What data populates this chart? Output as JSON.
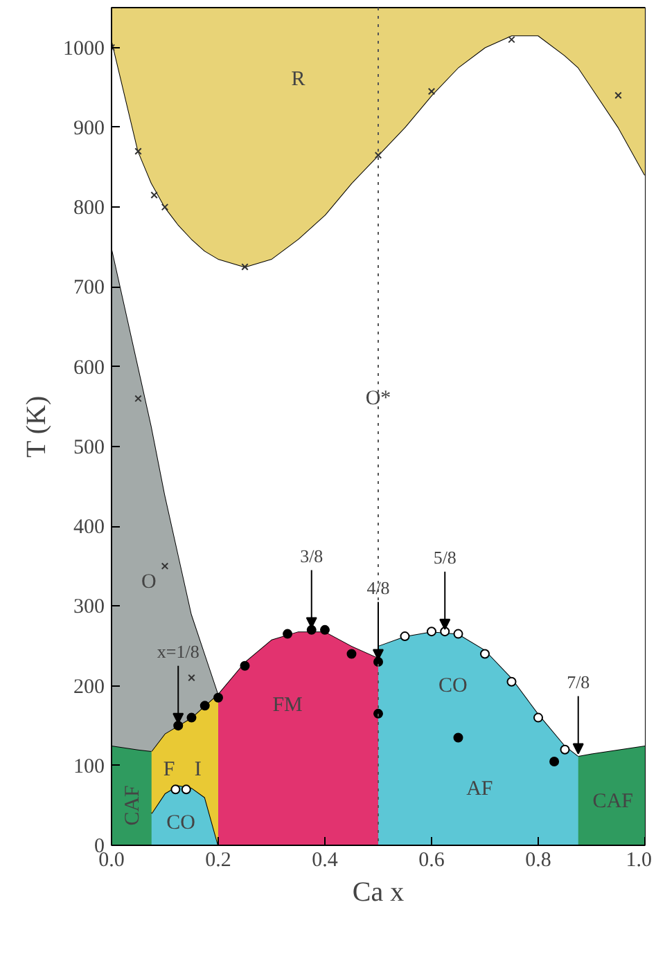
{
  "chart_data": {
    "type": "area",
    "stacked": true,
    "xlabel": "Ca x",
    "ylabel": "T (K)",
    "xlim": [
      0,
      1
    ],
    "ylim": [
      0,
      1050
    ],
    "xticks": [
      {
        "value": 0,
        "label": "0.0"
      },
      {
        "value": 0.2,
        "label": "0.2"
      },
      {
        "value": 0.4,
        "label": "0.4"
      },
      {
        "value": 0.6,
        "label": "0.6"
      },
      {
        "value": 0.8,
        "label": "0.8"
      },
      {
        "value": 1,
        "label": "1.0"
      }
    ],
    "yticks": [
      0,
      100,
      200,
      300,
      400,
      500,
      600,
      700,
      800,
      900,
      1000
    ],
    "x": [
      0,
      0.05,
      0.075,
      0.075,
      0.1,
      0.125,
      0.15,
      0.175,
      0.2,
      0.2,
      0.25,
      0.3,
      0.35,
      0.4,
      0.45,
      0.5,
      0.5,
      0.55,
      0.6,
      0.65,
      0.7,
      0.75,
      0.8,
      0.85,
      0.875,
      0.875,
      0.9,
      0.95,
      1.0
    ],
    "series": [
      {
        "color": "#2f9b5f",
        "values": [
          125,
          120,
          118,
          null,
          null,
          null,
          null,
          null,
          null,
          null,
          null,
          null,
          null,
          null,
          null,
          null,
          null,
          null,
          null,
          null,
          null,
          null,
          null,
          null,
          null,
          112,
          115,
          120,
          125
        ]
      },
      {
        "color": "#5cc7d6",
        "values": [
          null,
          null,
          null,
          40,
          65,
          75,
          72,
          60,
          0,
          null,
          null,
          null,
          null,
          null,
          null,
          null,
          250,
          262,
          268,
          265,
          245,
          210,
          165,
          125,
          112,
          null,
          null,
          null,
          null
        ]
      },
      {
        "color": "#e9c934",
        "values": [
          null,
          null,
          null,
          78,
          75,
          75,
          88,
          115,
          190,
          null,
          null,
          null,
          null,
          null,
          null,
          null,
          null,
          null,
          null,
          null,
          null,
          null,
          null,
          null,
          null,
          null,
          null,
          null,
          null
        ]
      },
      {
        "color": "#e2336f",
        "values": [
          null,
          null,
          null,
          null,
          null,
          null,
          null,
          null,
          null,
          190,
          230,
          258,
          268,
          268,
          250,
          235,
          null,
          null,
          null,
          null,
          null,
          null,
          null,
          null,
          null,
          null,
          null,
          null,
          null
        ]
      },
      {
        "color": "#a3aaa9",
        "values": [
          625,
          480,
          407,
          407,
          300,
          215,
          130,
          65,
          0,
          null,
          null,
          null,
          null,
          null,
          null,
          null,
          null,
          null,
          null,
          null,
          null,
          null,
          null,
          null,
          null,
          null,
          null,
          null,
          null
        ]
      },
      {
        "color": "#ffffff",
        "values": [
          260,
          270,
          305,
          305,
          360,
          413,
          470,
          505,
          545,
          545,
          495,
          477,
          492,
          522,
          580,
          630,
          615,
          638,
          672,
          710,
          755,
          805,
          850,
          865,
          863,
          863,
          835,
          780,
          715
        ]
      },
      {
        "color": "#e8d377",
        "values": [
          40,
          180,
          220,
          220,
          250,
          272,
          290,
          305,
          315,
          315,
          325,
          315,
          290,
          260,
          220,
          185,
          185,
          150,
          110,
          75,
          50,
          35,
          35,
          60,
          75,
          75,
          100,
          150,
          210
        ]
      },
      {
        "type": "scatter",
        "marker": "cross",
        "color": "#333333",
        "x": [
          0,
          0.05,
          0.08,
          0.1,
          0.25,
          0.5,
          0.6,
          0.75,
          0.95,
          0.05,
          0.1,
          0.15
        ],
        "values": [
          1000,
          870,
          815,
          800,
          725,
          865,
          945,
          1010,
          940,
          560,
          350,
          210
        ]
      },
      {
        "type": "scatter",
        "marker": "circle",
        "color": "#000000",
        "x": [
          0.125,
          0.15,
          0.175,
          0.2,
          0.25,
          0.33,
          0.375,
          0.4,
          0.45,
          0.5,
          0.5,
          0.65,
          0.83
        ],
        "values": [
          150,
          160,
          175,
          185,
          225,
          265,
          270,
          270,
          240,
          230,
          165,
          135,
          105
        ]
      },
      {
        "type": "scatter",
        "marker": "circle",
        "color": "#ffffff",
        "x": [
          0.55,
          0.6,
          0.625,
          0.65,
          0.7,
          0.75,
          0.8,
          0.85,
          0.12,
          0.14
        ],
        "values": [
          262,
          268,
          268,
          265,
          240,
          205,
          160,
          120,
          70,
          70
        ]
      }
    ],
    "ref_lines": [
      {
        "axis": "x",
        "value": 0.5,
        "color": "#555555",
        "line_style": "dotted"
      }
    ],
    "annotations": [
      "R",
      "O*",
      "O",
      "F",
      "I",
      "CO",
      "FM",
      "CO",
      "AF",
      "CAF",
      "CAF",
      {
        "text": "x=1/8",
        "x": 0.125,
        "y": 150
      },
      {
        "text": "3/8",
        "x": 0.375,
        "y": 270
      },
      {
        "text": "4/8",
        "x": 0.5,
        "y": 230
      },
      {
        "text": "5/8",
        "x": 0.625,
        "y": 268
      },
      {
        "text": "7/8",
        "x": 0.875,
        "y": 112
      }
    ]
  }
}
